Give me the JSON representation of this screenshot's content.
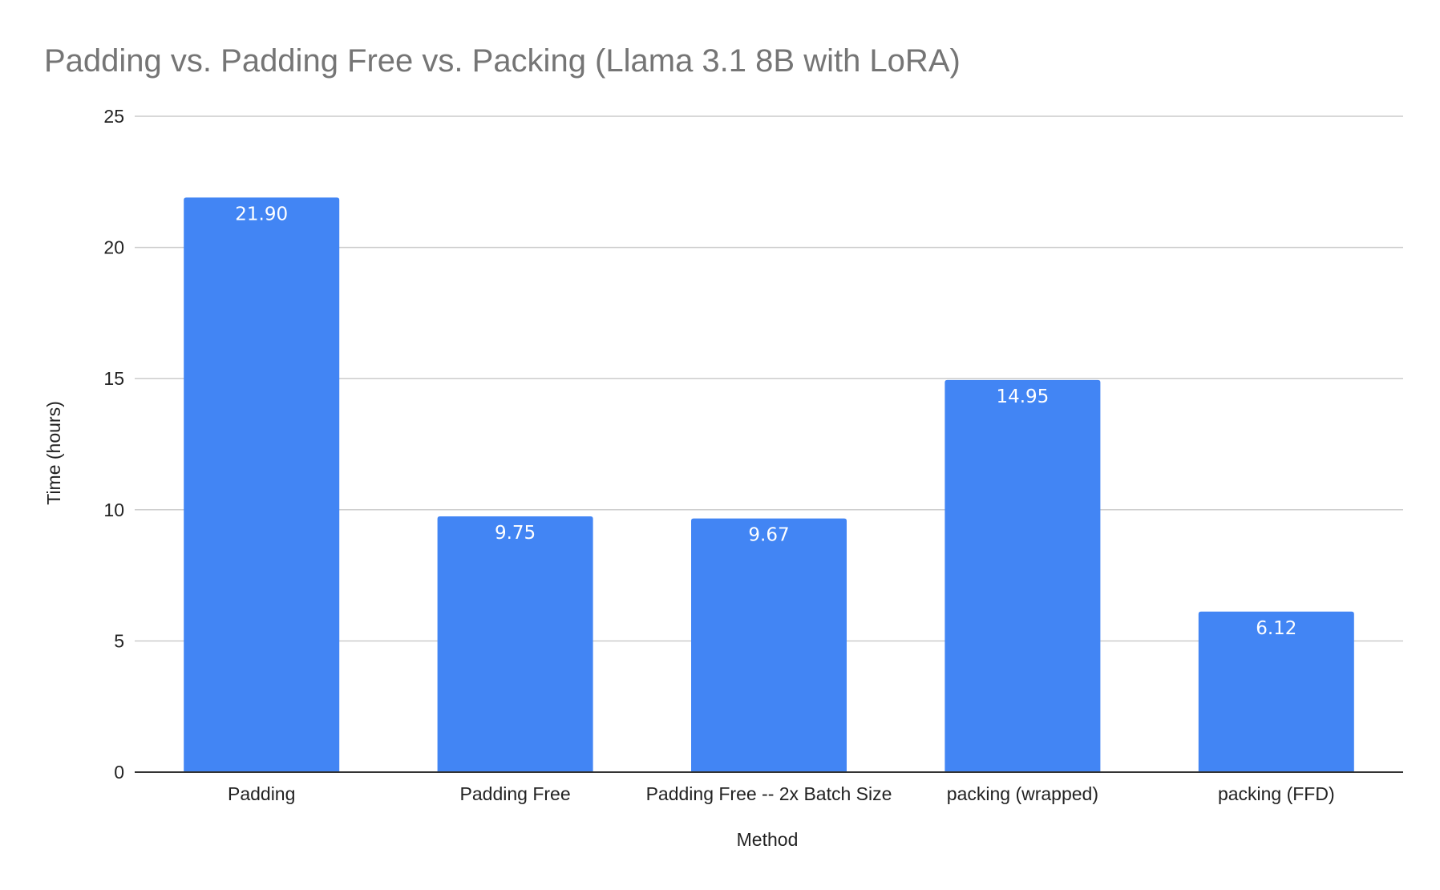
{
  "chart_data": {
    "type": "bar",
    "title": "Padding vs. Padding Free vs. Packing (Llama 3.1 8B with LoRA)",
    "xlabel": "Method",
    "ylabel": "Time (hours)",
    "categories": [
      "Padding",
      "Padding Free",
      "Padding Free -- 2x Batch Size",
      "packing (wrapped)",
      "packing (FFD)"
    ],
    "values": [
      21.9,
      9.75,
      9.67,
      14.95,
      6.12
    ],
    "data_labels": [
      "21.90",
      "9.75",
      "9.67",
      "14.95",
      "6.12"
    ],
    "ylim": [
      0,
      25
    ],
    "yticks": [
      0,
      5,
      10,
      15,
      20,
      25
    ],
    "grid": true,
    "legend": "none",
    "colors": {
      "bar": "#4285f4",
      "grid": "#cccccc",
      "axis": "#333333",
      "title": "#757575",
      "text": "#222222",
      "data_label": "#ffffff"
    }
  }
}
